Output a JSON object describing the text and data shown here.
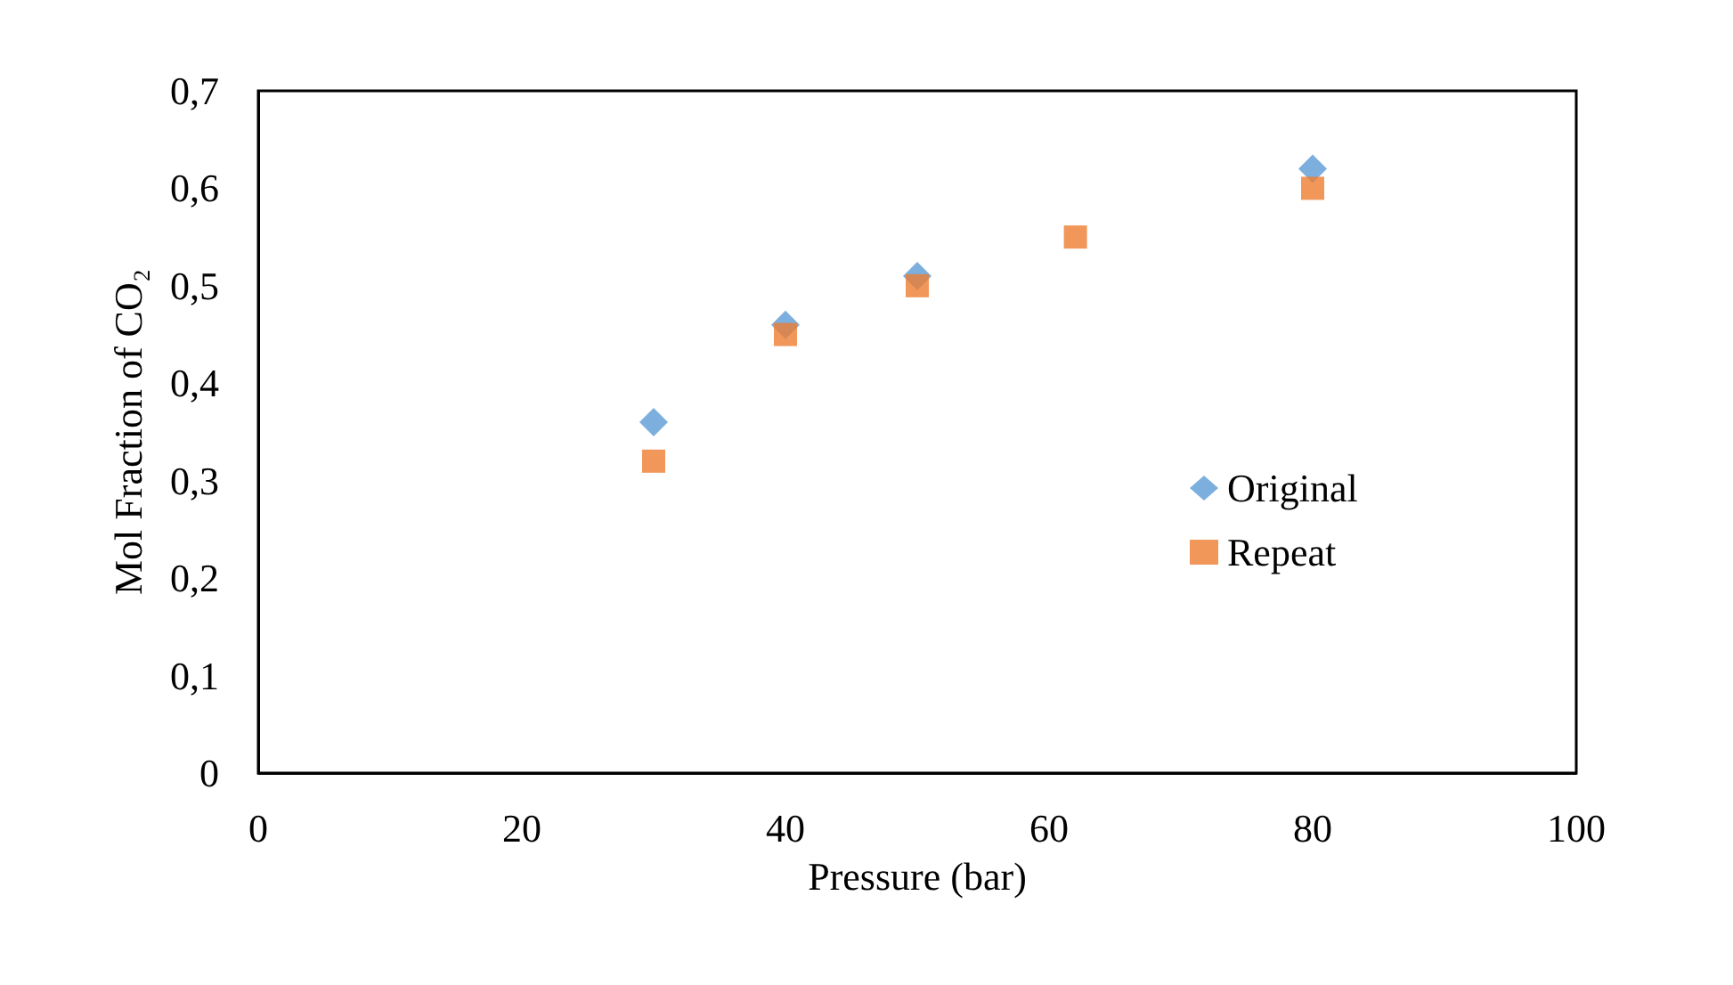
{
  "chart_data": {
    "type": "scatter",
    "xlabel": "Pressure (bar)",
    "ylabel": "Mol Fraction of CO₂",
    "series": [
      {
        "name": "Original",
        "color": "#5b9bd5",
        "marker": "diamond",
        "x": [
          30,
          40,
          50,
          80
        ],
        "values": [
          0.36,
          0.46,
          0.51,
          0.62
        ]
      },
      {
        "name": "Repeat",
        "color": "#ed7d31",
        "marker": "square",
        "x": [
          30,
          40,
          50,
          62,
          80
        ],
        "values": [
          0.32,
          0.45,
          0.5,
          0.55,
          0.6
        ]
      }
    ],
    "xlim": [
      0,
      100
    ],
    "xticks": [
      0,
      20,
      40,
      60,
      80,
      100
    ],
    "ylim": [
      0,
      0.7
    ],
    "yticks": [
      0,
      {
        "value": 0.1,
        "label": "0,1"
      },
      {
        "value": 0.2,
        "label": "0,2"
      },
      {
        "value": 0.3,
        "label": "0,3"
      },
      {
        "value": 0.4,
        "label": "0,4"
      },
      {
        "value": 0.5,
        "label": "0,5"
      },
      {
        "value": 0.6,
        "label": "0,6"
      },
      {
        "value": 0.7,
        "label": "0,7"
      }
    ],
    "grid": false,
    "legend": "right"
  }
}
